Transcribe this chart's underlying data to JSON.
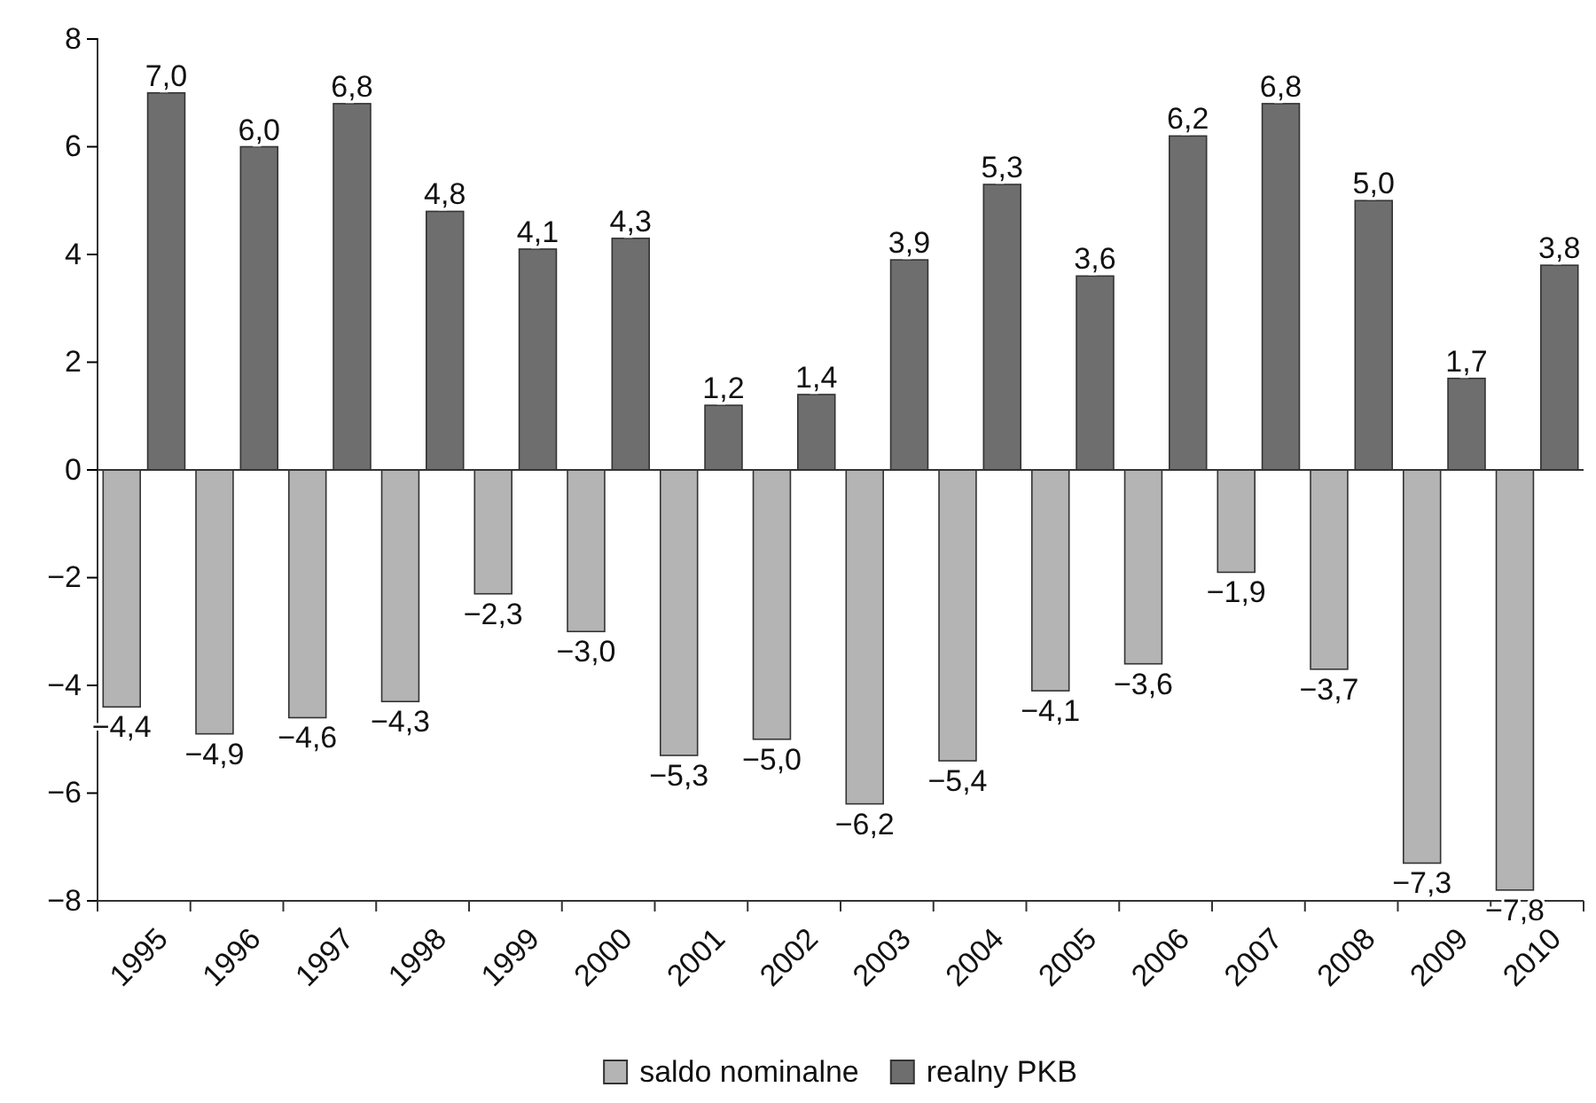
{
  "chart_data": {
    "type": "bar",
    "categories": [
      "1995",
      "1996",
      "1997",
      "1998",
      "1999",
      "2000",
      "2001",
      "2002",
      "2003",
      "2004",
      "2005",
      "2006",
      "2007",
      "2008",
      "2009",
      "2010"
    ],
    "series": [
      {
        "name": "saldo nominalne",
        "color": "#b4b4b4",
        "values": [
          -4.4,
          -4.9,
          -4.6,
          -4.3,
          -2.3,
          -3.0,
          -5.3,
          -5.0,
          -6.2,
          -5.4,
          -4.1,
          -3.6,
          -1.9,
          -3.7,
          -7.3,
          -7.8
        ],
        "value_labels": [
          "−4,4",
          "−4,9",
          "−4,6",
          "−4,3",
          "−2,3",
          "−3,0",
          "−5,3",
          "−5,0",
          "−6,2",
          "−5,4",
          "−4,1",
          "−3,6",
          "−1,9",
          "−3,7",
          "−7,3",
          "−7,8"
        ]
      },
      {
        "name": "realny PKB",
        "color": "#6e6e6e",
        "values": [
          7.0,
          6.0,
          6.8,
          4.8,
          4.1,
          4.3,
          1.2,
          1.4,
          3.9,
          5.3,
          3.6,
          6.2,
          6.8,
          5.0,
          1.7,
          3.8
        ],
        "value_labels": [
          "7,0",
          "6,0",
          "6,8",
          "4,8",
          "4,1",
          "4,3",
          "1,2",
          "1,4",
          "3,9",
          "5,3",
          "3,6",
          "6,2",
          "6,8",
          "5,0",
          "1,7",
          "3,8"
        ]
      }
    ],
    "ylim": [
      -8,
      8
    ],
    "yticks": [
      -8,
      -6,
      -4,
      -2,
      0,
      2,
      4,
      6,
      8
    ],
    "legend": "bottom"
  }
}
